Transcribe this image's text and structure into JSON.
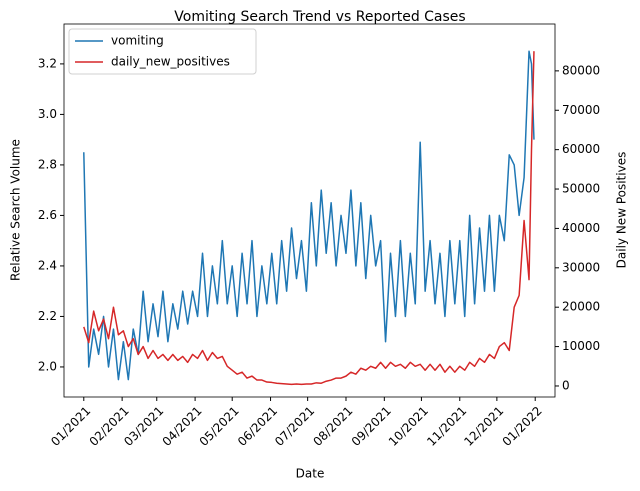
{
  "chart_data": {
    "type": "line",
    "title": "Vomiting Search Trend vs Reported Cases",
    "x_label": "Date",
    "y_label": "Relative Search Volume",
    "y2_label": "Daily New Positives",
    "x": [
      "2021-01-01",
      "2021-01-05",
      "2021-01-09",
      "2021-01-13",
      "2021-01-17",
      "2021-01-21",
      "2021-01-25",
      "2021-01-29",
      "2021-02-02",
      "2021-02-06",
      "2021-02-10",
      "2021-02-14",
      "2021-02-18",
      "2021-02-22",
      "2021-02-26",
      "2021-03-02",
      "2021-03-06",
      "2021-03-10",
      "2021-03-14",
      "2021-03-18",
      "2021-03-22",
      "2021-03-26",
      "2021-03-30",
      "2021-04-03",
      "2021-04-07",
      "2021-04-11",
      "2021-04-15",
      "2021-04-19",
      "2021-04-23",
      "2021-04-27",
      "2021-05-01",
      "2021-05-05",
      "2021-05-09",
      "2021-05-13",
      "2021-05-17",
      "2021-05-21",
      "2021-05-25",
      "2021-05-29",
      "2021-06-02",
      "2021-06-06",
      "2021-06-10",
      "2021-06-14",
      "2021-06-18",
      "2021-06-22",
      "2021-06-26",
      "2021-06-30",
      "2021-07-04",
      "2021-07-08",
      "2021-07-12",
      "2021-07-16",
      "2021-07-20",
      "2021-07-24",
      "2021-07-28",
      "2021-08-01",
      "2021-08-05",
      "2021-08-09",
      "2021-08-13",
      "2021-08-17",
      "2021-08-21",
      "2021-08-25",
      "2021-08-29",
      "2021-09-02",
      "2021-09-06",
      "2021-09-10",
      "2021-09-14",
      "2021-09-18",
      "2021-09-22",
      "2021-09-26",
      "2021-09-30",
      "2021-10-04",
      "2021-10-08",
      "2021-10-12",
      "2021-10-16",
      "2021-10-20",
      "2021-10-24",
      "2021-10-28",
      "2021-11-01",
      "2021-11-05",
      "2021-11-09",
      "2021-11-13",
      "2021-11-17",
      "2021-11-21",
      "2021-11-25",
      "2021-11-29",
      "2021-12-03",
      "2021-12-07",
      "2021-12-11",
      "2021-12-15",
      "2021-12-19",
      "2021-12-23",
      "2021-12-27",
      "2021-12-29",
      "2021-12-31"
    ],
    "series": [
      {
        "name": "vomiting",
        "color": "#1f77b4",
        "axis": "y",
        "values": [
          2.85,
          2.0,
          2.15,
          2.05,
          2.2,
          2.0,
          2.15,
          1.95,
          2.1,
          1.95,
          2.15,
          2.05,
          2.3,
          2.1,
          2.25,
          2.12,
          2.3,
          2.1,
          2.25,
          2.15,
          2.3,
          2.17,
          2.3,
          2.2,
          2.45,
          2.2,
          2.4,
          2.25,
          2.5,
          2.25,
          2.4,
          2.2,
          2.45,
          2.25,
          2.5,
          2.2,
          2.4,
          2.25,
          2.45,
          2.25,
          2.5,
          2.3,
          2.55,
          2.35,
          2.5,
          2.3,
          2.65,
          2.4,
          2.7,
          2.45,
          2.65,
          2.4,
          2.6,
          2.45,
          2.7,
          2.4,
          2.65,
          2.35,
          2.6,
          2.4,
          2.5,
          2.1,
          2.45,
          2.2,
          2.5,
          2.2,
          2.45,
          2.25,
          2.89,
          2.3,
          2.5,
          2.25,
          2.45,
          2.2,
          2.5,
          2.25,
          2.5,
          2.2,
          2.6,
          2.25,
          2.55,
          2.3,
          2.6,
          2.3,
          2.6,
          2.5,
          2.84,
          2.8,
          2.6,
          2.75,
          3.25,
          3.2,
          2.9
        ]
      },
      {
        "name": "daily_new_positives",
        "color": "#d62728",
        "axis": "y2",
        "values": [
          15000,
          11000,
          19000,
          14000,
          17000,
          12000,
          20000,
          13000,
          14000,
          10000,
          12000,
          8000,
          10000,
          7000,
          9000,
          7000,
          8000,
          6500,
          8000,
          6500,
          7500,
          6000,
          8000,
          7000,
          9000,
          6500,
          8500,
          7000,
          7500,
          5000,
          4000,
          3000,
          3500,
          2000,
          2500,
          1500,
          1500,
          1000,
          900,
          700,
          600,
          500,
          400,
          500,
          400,
          500,
          500,
          800,
          700,
          1200,
          1500,
          2000,
          2000,
          2500,
          3500,
          3000,
          4500,
          4000,
          5000,
          4500,
          6000,
          4500,
          6000,
          5000,
          5500,
          4500,
          6000,
          5000,
          5500,
          4000,
          5500,
          4000,
          5500,
          3500,
          5000,
          3500,
          5000,
          4000,
          6000,
          5000,
          7000,
          6000,
          8000,
          7000,
          10000,
          11000,
          9000,
          20000,
          23000,
          42000,
          27000,
          60000,
          85000
        ]
      }
    ],
    "xlim": [
      "2020-12-16",
      "2022-01-17"
    ],
    "xticks": [
      {
        "value": "2021-01-01",
        "label": "01/2021"
      },
      {
        "value": "2021-02-01",
        "label": "02/2021"
      },
      {
        "value": "2021-03-01",
        "label": "03/2021"
      },
      {
        "value": "2021-04-01",
        "label": "04/2021"
      },
      {
        "value": "2021-05-01",
        "label": "05/2021"
      },
      {
        "value": "2021-06-01",
        "label": "06/2021"
      },
      {
        "value": "2021-07-01",
        "label": "07/2021"
      },
      {
        "value": "2021-08-01",
        "label": "08/2021"
      },
      {
        "value": "2021-09-01",
        "label": "09/2021"
      },
      {
        "value": "2021-10-01",
        "label": "10/2021"
      },
      {
        "value": "2021-11-01",
        "label": "11/2021"
      },
      {
        "value": "2021-12-01",
        "label": "12/2021"
      },
      {
        "value": "2022-01-01",
        "label": "01/2022"
      }
    ],
    "ylim": [
      1.881,
      3.358
    ],
    "yticks": [
      {
        "value": 2,
        "label": "2.0"
      },
      2.2,
      2.4,
      2.6,
      2.8,
      {
        "value": 3,
        "label": "3.0"
      },
      3.2
    ],
    "y2lim": [
      -2800,
      91900
    ],
    "y2ticks": [
      0,
      10000,
      20000,
      30000,
      40000,
      50000,
      60000,
      70000,
      80000
    ],
    "legend": "upper left",
    "grid": false
  }
}
